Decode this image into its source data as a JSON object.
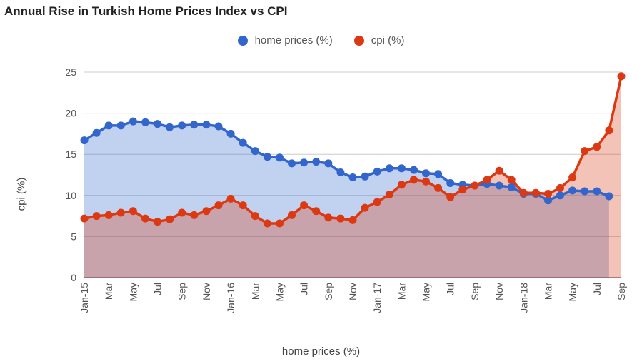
{
  "chart_data": {
    "type": "area",
    "title": "Annual Rise in Turkish Home Prices Index vs CPI",
    "xlabel": "home prices (%)",
    "ylabel": "cpi (%)",
    "ylim": [
      0,
      25
    ],
    "y_ticks": [
      "0",
      "5",
      "10",
      "15",
      "20",
      "25"
    ],
    "grid": true,
    "legend_position": "top",
    "x_tick_labels": [
      "Jan-15",
      "Mar",
      "May",
      "Jul",
      "Sep",
      "Nov",
      "Jan-16",
      "Mar",
      "May",
      "Jul",
      "Sep",
      "Nov",
      "Jan-17",
      "Mar",
      "May",
      "Jul",
      "Sep",
      "Nov",
      "Jan-18",
      "Mar",
      "May",
      "Jul",
      "Sep"
    ],
    "x": [
      "Jan-15",
      "Feb-15",
      "Mar-15",
      "Apr-15",
      "May-15",
      "Jun-15",
      "Jul-15",
      "Aug-15",
      "Sep-15",
      "Oct-15",
      "Nov-15",
      "Dec-15",
      "Jan-16",
      "Feb-16",
      "Mar-16",
      "Apr-16",
      "May-16",
      "Jun-16",
      "Jul-16",
      "Aug-16",
      "Sep-16",
      "Oct-16",
      "Nov-16",
      "Dec-16",
      "Jan-17",
      "Feb-17",
      "Mar-17",
      "Apr-17",
      "May-17",
      "Jun-17",
      "Jul-17",
      "Aug-17",
      "Sep-17",
      "Oct-17",
      "Nov-17",
      "Dec-17",
      "Jan-18",
      "Feb-18",
      "Mar-18",
      "Apr-18",
      "May-18",
      "Jun-18",
      "Jul-18",
      "Aug-18",
      "Sep-18"
    ],
    "series": [
      {
        "name": "home prices (%)",
        "color": "#3366cc",
        "values": [
          16.7,
          17.6,
          18.5,
          18.5,
          19.0,
          18.9,
          18.7,
          18.3,
          18.5,
          18.6,
          18.6,
          18.4,
          17.5,
          16.4,
          15.4,
          14.7,
          14.6,
          13.9,
          14.0,
          14.1,
          13.9,
          12.8,
          12.2,
          12.3,
          12.9,
          13.3,
          13.3,
          13.1,
          12.7,
          12.6,
          11.5,
          11.3,
          11.2,
          11.4,
          11.2,
          11.0,
          10.2,
          10.2,
          9.4,
          10.0,
          10.6,
          10.5,
          10.5,
          9.9,
          null
        ]
      },
      {
        "name": "cpi (%)",
        "color": "#dc3912",
        "values": [
          7.2,
          7.5,
          7.6,
          7.9,
          8.1,
          7.2,
          6.8,
          7.1,
          7.9,
          7.6,
          8.1,
          8.8,
          9.6,
          8.8,
          7.5,
          6.6,
          6.6,
          7.6,
          8.8,
          8.1,
          7.3,
          7.2,
          7.0,
          8.5,
          9.2,
          10.1,
          11.3,
          11.9,
          11.7,
          10.9,
          9.8,
          10.7,
          11.2,
          11.9,
          13.0,
          11.9,
          10.3,
          10.3,
          10.2,
          10.9,
          12.2,
          15.4,
          15.9,
          17.9,
          24.5
        ]
      }
    ]
  }
}
